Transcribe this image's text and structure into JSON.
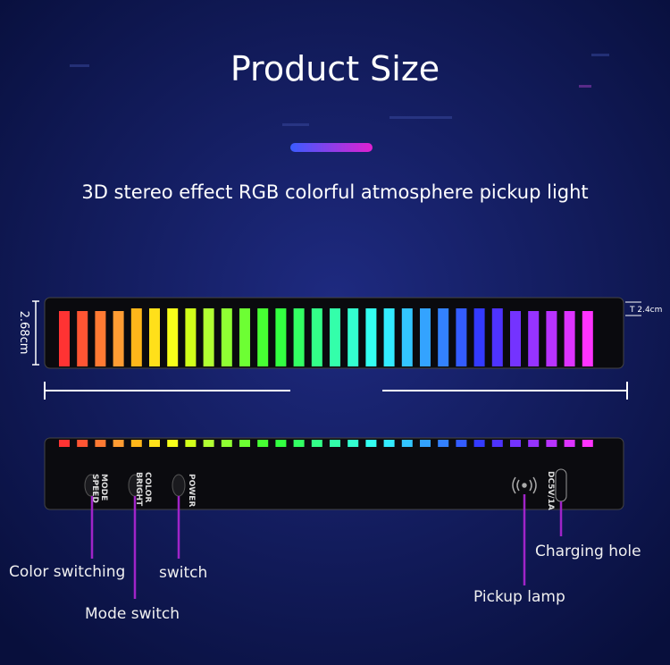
{
  "header": {
    "title": "Product Size",
    "subtitle": "3D stereo effect RGB colorful atmosphere pickup light"
  },
  "dimensions": {
    "height": "2.68cm",
    "thickness": "T 2.4cm"
  },
  "device": {
    "buttons": [
      [
        "MODE",
        "SPEED"
      ],
      [
        "COLOR",
        "BRIGHT"
      ],
      [
        "POWER"
      ]
    ],
    "port": "DC5V/1A"
  },
  "callouts": [
    "Color switching",
    "switch",
    "Mode switch",
    "Pickup lamp",
    "Charging hole"
  ]
}
